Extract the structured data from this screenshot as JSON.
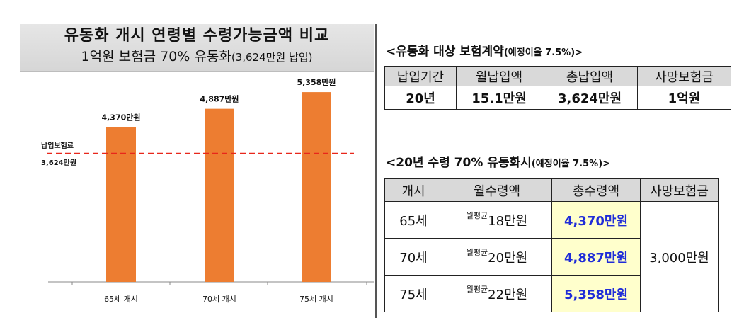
{
  "left": {
    "title": "유동화 개시 연령별 수령가능금액 비교",
    "subtitle_main": "1억원 보험금 70% 유동화",
    "subtitle_small": "(3,624만원 납입)"
  },
  "chart_data": {
    "type": "bar",
    "categories": [
      "65세 개시",
      "70세 개시",
      "75세 개시"
    ],
    "values": [
      4370,
      4887,
      5358
    ],
    "data_labels": [
      "4,370만원",
      "4,887만원",
      "5,358만원"
    ],
    "bar_color": "#ed7d31",
    "reference_line": {
      "value": 3624,
      "label_line1": "납입보험료",
      "label_line2": "3,624만원",
      "color": "#e8271b",
      "style": "dashed"
    },
    "ylim": [
      0,
      5600
    ],
    "grid": false,
    "legend": "none"
  },
  "table1": {
    "title": "<유동화 대상 보험계약",
    "title_small": "(예정이율 7.5%)>",
    "headers": [
      "납입기간",
      "월납입액",
      "총납입액",
      "사망보험금"
    ],
    "row": [
      "20년",
      "15.1만원",
      "3,624만원",
      "1억원"
    ]
  },
  "table2": {
    "title": "<20년 수령 70% 유동화시",
    "title_small": "(예정이율 7.5%)>",
    "headers": [
      "개시",
      "월수령액",
      "총수령액",
      "사망보험금"
    ],
    "avg_prefix": "월평균",
    "rows": [
      {
        "age": "65세",
        "monthly": "18만원",
        "total": "4,370만원"
      },
      {
        "age": "70세",
        "monthly": "20만원",
        "total": "4,887만원"
      },
      {
        "age": "75세",
        "monthly": "22만원",
        "total": "5,358만원"
      }
    ],
    "death_benefit": "3,000만원",
    "highlight_bg": "#ffffcc",
    "highlight_text": "#1f2cd8"
  }
}
